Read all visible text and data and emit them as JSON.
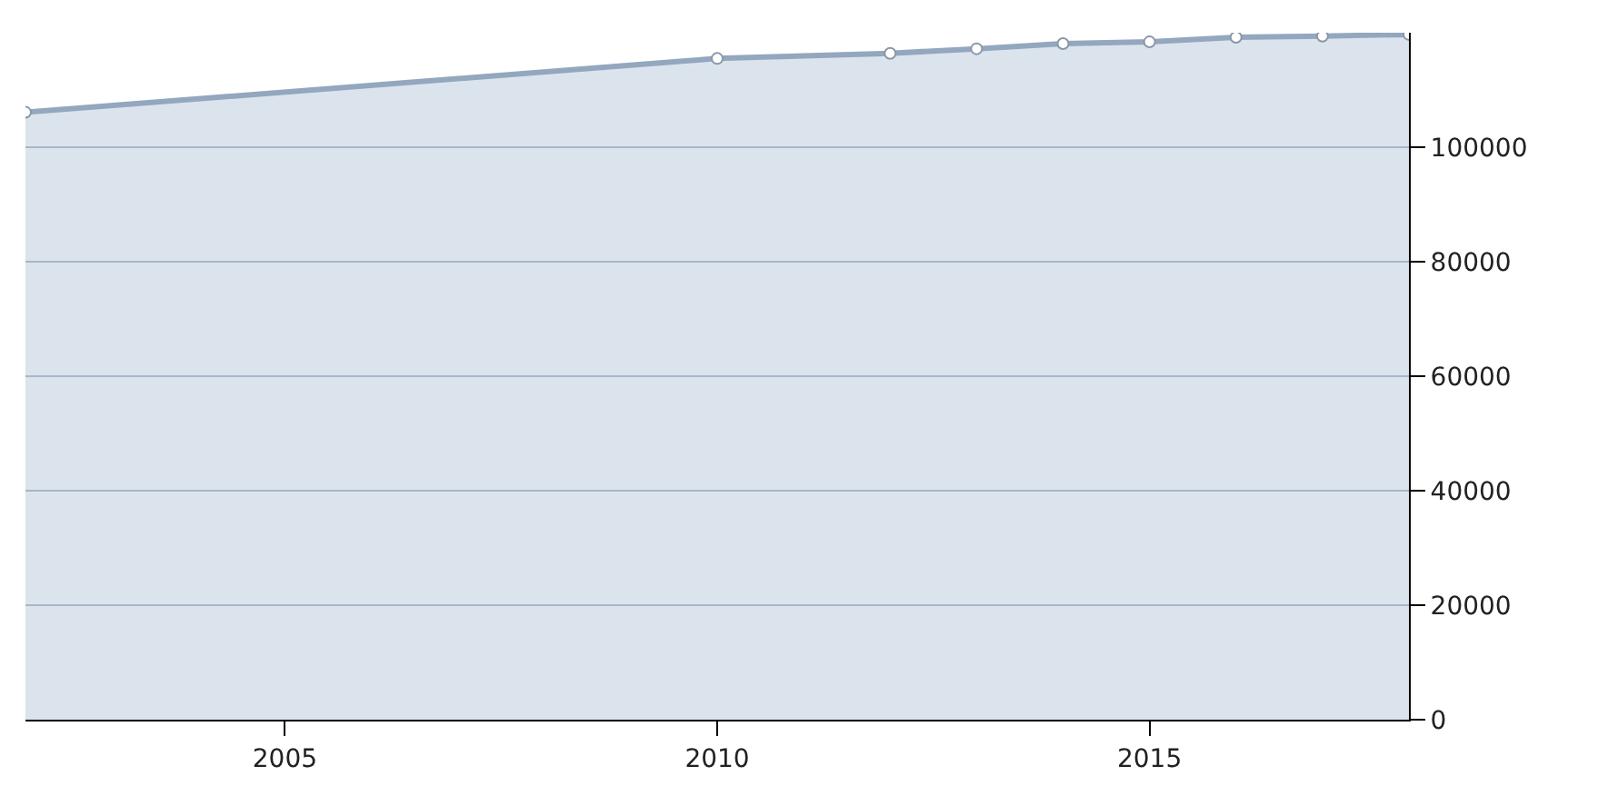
{
  "chart_data": {
    "type": "area",
    "x": [
      2002,
      2010,
      2012,
      2013,
      2014,
      2015,
      2016,
      2017,
      2018
    ],
    "series": [
      {
        "color": "#93a7bf",
        "values": [
          106100,
          115500,
          116400,
          117200,
          118100,
          118400,
          119200,
          119400,
          119700
        ]
      }
    ],
    "xlim": [
      2002,
      2018
    ],
    "xticks": [
      2005,
      2010,
      2015
    ],
    "ylim": [
      0,
      120000
    ],
    "yticks": [
      0,
      20000,
      40000,
      60000,
      80000,
      100000
    ],
    "grid": "y",
    "marker": "circle"
  }
}
